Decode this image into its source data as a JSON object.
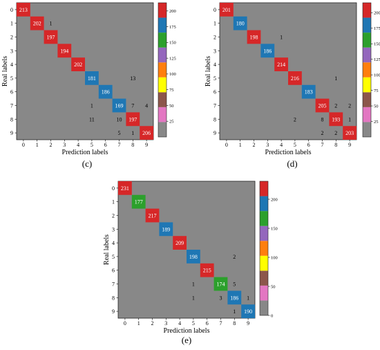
{
  "chart_data": [
    {
      "type": "heatmap",
      "panel_label": "(c)",
      "xlabel": "Prediction labels",
      "ylabel": "Real labels",
      "x_tick_labels": [
        "0",
        "1",
        "2",
        "3",
        "4",
        "5",
        "6",
        "7",
        "8",
        "9"
      ],
      "y_tick_labels": [
        "0",
        "1",
        "2",
        "3",
        "4",
        "5",
        "6",
        "7",
        "8",
        "9"
      ],
      "colorbar_ticks": [
        "25",
        "50",
        "75",
        "100",
        "125",
        "150",
        "175",
        "200"
      ],
      "cmax": 213,
      "cells": [
        {
          "row": 0,
          "col": 0,
          "value": 213,
          "label": "213"
        },
        {
          "row": 1,
          "col": 1,
          "value": 202,
          "label": "202"
        },
        {
          "row": 1,
          "col": 2,
          "value": 1,
          "label": "1"
        },
        {
          "row": 2,
          "col": 2,
          "value": 197,
          "label": "197"
        },
        {
          "row": 3,
          "col": 3,
          "value": 194,
          "label": "194"
        },
        {
          "row": 4,
          "col": 4,
          "value": 202,
          "label": "202"
        },
        {
          "row": 5,
          "col": 5,
          "value": 181,
          "label": "181"
        },
        {
          "row": 5,
          "col": 8,
          "value": 13,
          "label": "13"
        },
        {
          "row": 6,
          "col": 6,
          "value": 186,
          "label": "186"
        },
        {
          "row": 7,
          "col": 5,
          "value": 1,
          "label": "1"
        },
        {
          "row": 7,
          "col": 7,
          "value": 169,
          "label": "169"
        },
        {
          "row": 7,
          "col": 8,
          "value": 7,
          "label": "7"
        },
        {
          "row": 7,
          "col": 9,
          "value": 4,
          "label": "4"
        },
        {
          "row": 8,
          "col": 5,
          "value": 11,
          "label": "11"
        },
        {
          "row": 8,
          "col": 7,
          "value": 10,
          "label": "10"
        },
        {
          "row": 8,
          "col": 8,
          "value": 197,
          "label": "197"
        },
        {
          "row": 9,
          "col": 7,
          "value": 5,
          "label": "5"
        },
        {
          "row": 9,
          "col": 8,
          "value": 1,
          "label": "1"
        },
        {
          "row": 9,
          "col": 9,
          "value": 206,
          "label": "206"
        }
      ]
    },
    {
      "type": "heatmap",
      "panel_label": "(d)",
      "xlabel": "Prediction labels",
      "ylabel": "Real labels",
      "x_tick_labels": [
        "0",
        "1",
        "2",
        "3",
        "4",
        "5",
        "6",
        "7",
        "8",
        "9"
      ],
      "y_tick_labels": [
        "0",
        "1",
        "2",
        "3",
        "4",
        "5",
        "6",
        "7",
        "8",
        "9"
      ],
      "colorbar_ticks": [
        "25",
        "50",
        "75",
        "100",
        "125",
        "150",
        "175",
        "200"
      ],
      "cmax": 216,
      "cells": [
        {
          "row": 0,
          "col": 0,
          "value": 201,
          "label": "201"
        },
        {
          "row": 1,
          "col": 1,
          "value": 180,
          "label": "180"
        },
        {
          "row": 2,
          "col": 2,
          "value": 198,
          "label": "198"
        },
        {
          "row": 2,
          "col": 4,
          "value": 1,
          "label": "1"
        },
        {
          "row": 3,
          "col": 3,
          "value": 186,
          "label": "186"
        },
        {
          "row": 4,
          "col": 4,
          "value": 214,
          "label": "214"
        },
        {
          "row": 5,
          "col": 5,
          "value": 216,
          "label": "216"
        },
        {
          "row": 5,
          "col": 8,
          "value": 1,
          "label": "1"
        },
        {
          "row": 6,
          "col": 6,
          "value": 183,
          "label": "183"
        },
        {
          "row": 7,
          "col": 7,
          "value": 205,
          "label": "205"
        },
        {
          "row": 7,
          "col": 8,
          "value": 2,
          "label": "2"
        },
        {
          "row": 7,
          "col": 9,
          "value": 2,
          "label": "2"
        },
        {
          "row": 8,
          "col": 5,
          "value": 2,
          "label": "2"
        },
        {
          "row": 8,
          "col": 7,
          "value": 8,
          "label": "8"
        },
        {
          "row": 8,
          "col": 8,
          "value": 193,
          "label": "193"
        },
        {
          "row": 8,
          "col": 9,
          "value": 1,
          "label": "1"
        },
        {
          "row": 9,
          "col": 7,
          "value": 2,
          "label": "2"
        },
        {
          "row": 9,
          "col": 8,
          "value": 2,
          "label": "2"
        },
        {
          "row": 9,
          "col": 9,
          "value": 203,
          "label": "203"
        }
      ]
    },
    {
      "type": "heatmap",
      "panel_label": "(e)",
      "xlabel": "Prediction labels",
      "ylabel": "Real labels",
      "x_tick_labels": [
        "0",
        "1",
        "2",
        "3",
        "4",
        "5",
        "6",
        "7",
        "8",
        "9"
      ],
      "y_tick_labels": [
        "0",
        "1",
        "2",
        "3",
        "4",
        "5",
        "6",
        "7",
        "8",
        "9"
      ],
      "colorbar_ticks": [
        "0",
        "50",
        "100",
        "150",
        "200"
      ],
      "cmax": 231,
      "cells": [
        {
          "row": 0,
          "col": 0,
          "value": 231,
          "label": "231"
        },
        {
          "row": 1,
          "col": 1,
          "value": 177,
          "label": "177"
        },
        {
          "row": 2,
          "col": 2,
          "value": 217,
          "label": "217"
        },
        {
          "row": 3,
          "col": 3,
          "value": 189,
          "label": "189"
        },
        {
          "row": 4,
          "col": 4,
          "value": 209,
          "label": "209"
        },
        {
          "row": 5,
          "col": 5,
          "value": 198,
          "label": "198"
        },
        {
          "row": 5,
          "col": 8,
          "value": 2,
          "label": "2"
        },
        {
          "row": 6,
          "col": 6,
          "value": 215,
          "label": "215"
        },
        {
          "row": 7,
          "col": 5,
          "value": 1,
          "label": "1"
        },
        {
          "row": 7,
          "col": 7,
          "value": 174,
          "label": "174"
        },
        {
          "row": 7,
          "col": 8,
          "value": 5,
          "label": "5"
        },
        {
          "row": 8,
          "col": 5,
          "value": 1,
          "label": "1"
        },
        {
          "row": 8,
          "col": 7,
          "value": 3,
          "label": "3"
        },
        {
          "row": 8,
          "col": 8,
          "value": 186,
          "label": "186"
        },
        {
          "row": 8,
          "col": 9,
          "value": 1,
          "label": "1"
        },
        {
          "row": 9,
          "col": 8,
          "value": 1,
          "label": "1"
        },
        {
          "row": 9,
          "col": 9,
          "value": 190,
          "label": "190"
        }
      ]
    }
  ],
  "colormap": [
    "#888888",
    "#e377c2",
    "#8c564b",
    "#ffff00",
    "#ff7f0e",
    "#9467bd",
    "#2ca02c",
    "#1f77b4",
    "#d62728"
  ],
  "background_color": "#888888"
}
